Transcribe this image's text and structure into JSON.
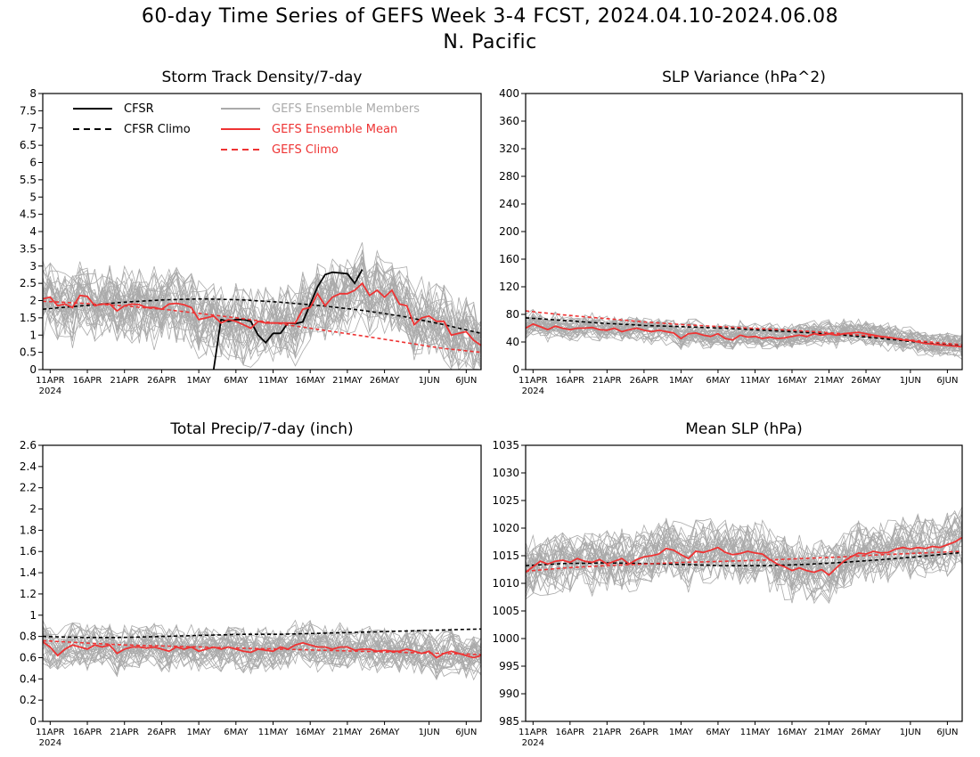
{
  "figure": {
    "title_line1": "60-day Time Series of GEFS Week 3-4 FCST, 2024.04.10-2024.06.08",
    "title_line2": "N. Pacific"
  },
  "colors": {
    "cfsr": "#000000",
    "members": "#aaaaaa",
    "mean": "#ee3333"
  },
  "chart_data": [
    {
      "type": "line",
      "title": "Storm Track Density/7-day",
      "x": {
        "start": "2024-04-10",
        "end": "2024-06-08",
        "tick_labels": [
          "11APR",
          "16APR",
          "21APR",
          "26APR",
          "1MAY",
          "6MAY",
          "11MAY",
          "16MAY",
          "21MAY",
          "26MAY",
          "1JUN",
          "6JUN"
        ],
        "year_label": "2024"
      },
      "ylim": [
        0,
        8
      ],
      "yticks": [
        "0",
        "0.5",
        "1",
        "1.5",
        "2",
        "2.5",
        "3",
        "3.5",
        "4",
        "4.5",
        "5",
        "5.5",
        "6",
        "6.5",
        "7",
        "7.5",
        "8"
      ],
      "legend": {
        "placement": "top-left",
        "entries": [
          "CFSR",
          "CFSR Climo",
          "GEFS Ensemble Members",
          "GEFS Ensemble Mean",
          "GEFS Climo"
        ]
      },
      "ensemble": {
        "members": 31,
        "spread": 0.75
      },
      "series": [
        {
          "name": "CFSR",
          "style": "solid-black",
          "x_start_day": 23,
          "values": [
            0.0,
            1.45,
            1.4,
            1.45,
            1.45,
            1.4,
            1.0,
            0.78,
            1.05,
            1.05,
            1.35,
            1.33,
            1.38,
            1.9,
            2.4,
            2.75,
            2.82,
            2.8,
            2.78,
            2.5,
            2.9
          ]
        },
        {
          "name": "CFSR Climo",
          "style": "dashed-black",
          "values": [
            1.75,
            1.85,
            1.95,
            2.02,
            2.05,
            2.02,
            1.95,
            1.85,
            1.72,
            1.55,
            1.32,
            1.05
          ]
        },
        {
          "name": "GEFS Ensemble Mean",
          "style": "solid-red",
          "values": [
            2.05,
            2.1,
            1.85,
            1.9,
            1.8,
            2.15,
            2.12,
            1.85,
            1.9,
            1.9,
            1.7,
            1.85,
            1.9,
            1.88,
            1.8,
            1.8,
            1.75,
            1.9,
            1.92,
            1.88,
            1.8,
            1.45,
            1.5,
            1.55,
            1.35,
            1.45,
            1.4,
            1.3,
            1.2,
            1.4,
            1.35,
            1.35,
            1.35,
            1.35,
            1.35,
            1.75,
            1.8,
            2.2,
            1.85,
            2.1,
            2.2,
            2.2,
            2.3,
            2.5,
            2.15,
            2.3,
            2.1,
            2.3,
            1.9,
            1.85,
            1.3,
            1.5,
            1.55,
            1.4,
            1.4,
            1.0,
            1.05,
            1.1,
            0.85,
            0.7
          ]
        },
        {
          "name": "GEFS Climo",
          "style": "dashed-red",
          "values": [
            1.98,
            1.92,
            1.85,
            1.75,
            1.62,
            1.48,
            1.32,
            1.15,
            0.98,
            0.8,
            0.62,
            0.5
          ]
        }
      ]
    },
    {
      "type": "line",
      "title": "SLP Variance (hPa^2)",
      "x": {
        "start": "2024-04-10",
        "end": "2024-06-08",
        "tick_labels": [
          "11APR",
          "16APR",
          "21APR",
          "26APR",
          "1MAY",
          "6MAY",
          "11MAY",
          "16MAY",
          "21MAY",
          "26MAY",
          "1JUN",
          "6JUN"
        ],
        "year_label": "2024"
      },
      "ylim": [
        0,
        400
      ],
      "yticks": [
        "0",
        "40",
        "80",
        "120",
        "160",
        "200",
        "240",
        "280",
        "320",
        "360",
        "400"
      ],
      "ensemble": {
        "members": 31,
        "spread": 13
      },
      "series": [
        {
          "name": "CFSR Climo",
          "style": "dashed-black",
          "values": [
            75,
            71,
            67,
            64,
            62,
            60,
            57,
            54,
            50,
            45,
            39,
            34
          ]
        },
        {
          "name": "GEFS Ensemble Mean",
          "style": "solid-red",
          "values": [
            60,
            66,
            62,
            58,
            63,
            60,
            58,
            60,
            60,
            61,
            58,
            57,
            60,
            55,
            58,
            60,
            57,
            55,
            57,
            55,
            53,
            45,
            52,
            53,
            50,
            48,
            52,
            45,
            43,
            50,
            47,
            48,
            45,
            47,
            45,
            46,
            48,
            50,
            48,
            52,
            50,
            52,
            50,
            52,
            53,
            54,
            52,
            50,
            48,
            47,
            45,
            43,
            42,
            40,
            38,
            37,
            36,
            35,
            34,
            33
          ]
        },
        {
          "name": "GEFS Climo",
          "style": "dashed-red",
          "values": [
            85,
            79,
            74,
            69,
            65,
            62,
            59,
            56,
            52,
            47,
            41,
            36
          ]
        }
      ]
    },
    {
      "type": "line",
      "title": "Total Precip/7-day (inch)",
      "x": {
        "start": "2024-04-10",
        "end": "2024-06-08",
        "tick_labels": [
          "11APR",
          "16APR",
          "21APR",
          "26APR",
          "1MAY",
          "6MAY",
          "11MAY",
          "16MAY",
          "21MAY",
          "26MAY",
          "1JUN",
          "6JUN"
        ],
        "year_label": "2024"
      },
      "ylim": [
        0,
        2.6
      ],
      "yticks": [
        "0",
        "0.2",
        "0.4",
        "0.6",
        "0.8",
        "1",
        "1.2",
        "1.4",
        "1.6",
        "1.8",
        "2",
        "2.2",
        "2.4",
        "2.6"
      ],
      "ensemble": {
        "members": 31,
        "spread": 0.14
      },
      "series": [
        {
          "name": "CFSR Climo",
          "style": "dashed-black",
          "values": [
            0.8,
            0.79,
            0.79,
            0.8,
            0.81,
            0.82,
            0.82,
            0.83,
            0.84,
            0.85,
            0.86,
            0.87
          ]
        },
        {
          "name": "GEFS Ensemble Mean",
          "style": "solid-red",
          "values": [
            0.75,
            0.7,
            0.62,
            0.68,
            0.72,
            0.7,
            0.68,
            0.72,
            0.7,
            0.72,
            0.64,
            0.68,
            0.7,
            0.7,
            0.69,
            0.7,
            0.68,
            0.66,
            0.7,
            0.68,
            0.7,
            0.66,
            0.68,
            0.7,
            0.68,
            0.7,
            0.68,
            0.66,
            0.65,
            0.68,
            0.67,
            0.66,
            0.7,
            0.68,
            0.72,
            0.74,
            0.72,
            0.7,
            0.7,
            0.68,
            0.7,
            0.7,
            0.67,
            0.68,
            0.68,
            0.66,
            0.67,
            0.66,
            0.66,
            0.68,
            0.66,
            0.64,
            0.66,
            0.6,
            0.64,
            0.66,
            0.64,
            0.62,
            0.6,
            0.62
          ]
        },
        {
          "name": "GEFS Climo",
          "style": "dashed-red",
          "values": [
            0.76,
            0.74,
            0.72,
            0.71,
            0.7,
            0.69,
            0.68,
            0.67,
            0.66,
            0.65,
            0.64,
            0.63
          ]
        }
      ]
    },
    {
      "type": "line",
      "title": "Mean SLP (hPa)",
      "x": {
        "start": "2024-04-10",
        "end": "2024-06-08",
        "tick_labels": [
          "11APR",
          "16APR",
          "21APR",
          "26APR",
          "1MAY",
          "6MAY",
          "11MAY",
          "16MAY",
          "21MAY",
          "26MAY",
          "1JUN",
          "6JUN"
        ],
        "year_label": "2024"
      },
      "ylim": [
        985,
        1035
      ],
      "yticks": [
        "985",
        "990",
        "995",
        "1000",
        "1005",
        "1010",
        "1015",
        "1020",
        "1025",
        "1030",
        "1035"
      ],
      "ensemble": {
        "members": 31,
        "spread": 3.8
      },
      "series": [
        {
          "name": "CFSR Climo",
          "style": "dashed-black",
          "values": [
            1013.2,
            1013.6,
            1013.7,
            1013.6,
            1013.4,
            1013.2,
            1013.2,
            1013.4,
            1013.8,
            1014.3,
            1014.9,
            1015.6
          ]
        },
        {
          "name": "GEFS Ensemble Mean",
          "style": "solid-red",
          "values": [
            1012,
            1013,
            1014,
            1013.5,
            1014,
            1014.2,
            1013.8,
            1014.5,
            1014,
            1013.8,
            1014.3,
            1013.5,
            1014,
            1014.5,
            1013.5,
            1014.3,
            1014.8,
            1015,
            1015.3,
            1016.3,
            1016,
            1015.2,
            1014.5,
            1015.8,
            1015.6,
            1016,
            1016.5,
            1015.6,
            1015.2,
            1015.4,
            1015.8,
            1015.5,
            1015.3,
            1014.3,
            1013.5,
            1013,
            1012.3,
            1012.8,
            1012.3,
            1012,
            1012.5,
            1011.5,
            1012.8,
            1014,
            1014.8,
            1015.5,
            1015.3,
            1015.8,
            1015.5,
            1015.6,
            1016.2,
            1016.5,
            1016.2,
            1016.5,
            1016.3,
            1016.7,
            1016.5,
            1017,
            1017.5,
            1018.3
          ]
        },
        {
          "name": "GEFS Climo",
          "style": "dashed-red",
          "values": [
            1012.2,
            1012.8,
            1013.2,
            1013.5,
            1013.8,
            1014,
            1014.2,
            1014.5,
            1014.8,
            1015.2,
            1015.5,
            1015.8
          ]
        }
      ]
    }
  ]
}
